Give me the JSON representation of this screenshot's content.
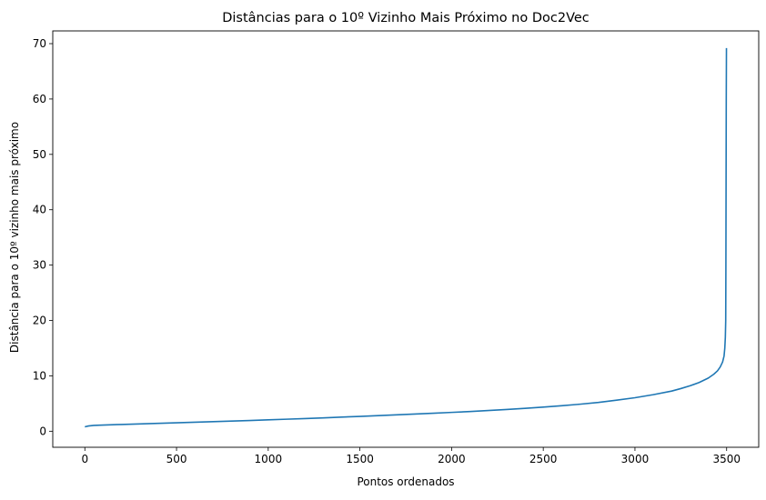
{
  "chart_data": {
    "type": "line",
    "title": "Distâncias para o 10º Vizinho Mais Próximo no Doc2Vec",
    "xlabel": "Pontos ordenados",
    "ylabel": "Distância para o 10º vizinho mais próximo",
    "xlim": [
      -175,
      3675
    ],
    "ylim": [
      -2.9,
      72.3
    ],
    "x_ticks": [
      0,
      500,
      1000,
      1500,
      2000,
      2500,
      3000,
      3500
    ],
    "y_ticks": [
      0,
      10,
      20,
      30,
      40,
      50,
      60,
      70
    ],
    "grid": false,
    "legend": "none",
    "series": [
      {
        "color": "#1f77b4",
        "points": [
          [
            0,
            0.8
          ],
          [
            20,
            0.95
          ],
          [
            50,
            1.05
          ],
          [
            100,
            1.12
          ],
          [
            200,
            1.22
          ],
          [
            300,
            1.32
          ],
          [
            400,
            1.42
          ],
          [
            500,
            1.52
          ],
          [
            600,
            1.62
          ],
          [
            700,
            1.72
          ],
          [
            800,
            1.83
          ],
          [
            900,
            1.94
          ],
          [
            1000,
            2.05
          ],
          [
            1100,
            2.17
          ],
          [
            1200,
            2.29
          ],
          [
            1300,
            2.41
          ],
          [
            1400,
            2.55
          ],
          [
            1500,
            2.68
          ],
          [
            1600,
            2.82
          ],
          [
            1700,
            2.96
          ],
          [
            1800,
            3.1
          ],
          [
            1900,
            3.25
          ],
          [
            2000,
            3.4
          ],
          [
            2100,
            3.56
          ],
          [
            2200,
            3.74
          ],
          [
            2300,
            3.93
          ],
          [
            2400,
            4.13
          ],
          [
            2500,
            4.35
          ],
          [
            2600,
            4.6
          ],
          [
            2700,
            4.88
          ],
          [
            2800,
            5.2
          ],
          [
            2900,
            5.6
          ],
          [
            3000,
            6.05
          ],
          [
            3100,
            6.6
          ],
          [
            3200,
            7.25
          ],
          [
            3250,
            7.7
          ],
          [
            3300,
            8.2
          ],
          [
            3350,
            8.8
          ],
          [
            3400,
            9.6
          ],
          [
            3430,
            10.3
          ],
          [
            3450,
            10.9
          ],
          [
            3465,
            11.6
          ],
          [
            3478,
            12.5
          ],
          [
            3486,
            13.6
          ],
          [
            3490,
            15.0
          ],
          [
            3493,
            17.0
          ],
          [
            3495,
            20.0
          ],
          [
            3496,
            30.0
          ],
          [
            3497,
            45.0
          ],
          [
            3498,
            60.0
          ],
          [
            3499,
            69.2
          ]
        ]
      }
    ]
  }
}
